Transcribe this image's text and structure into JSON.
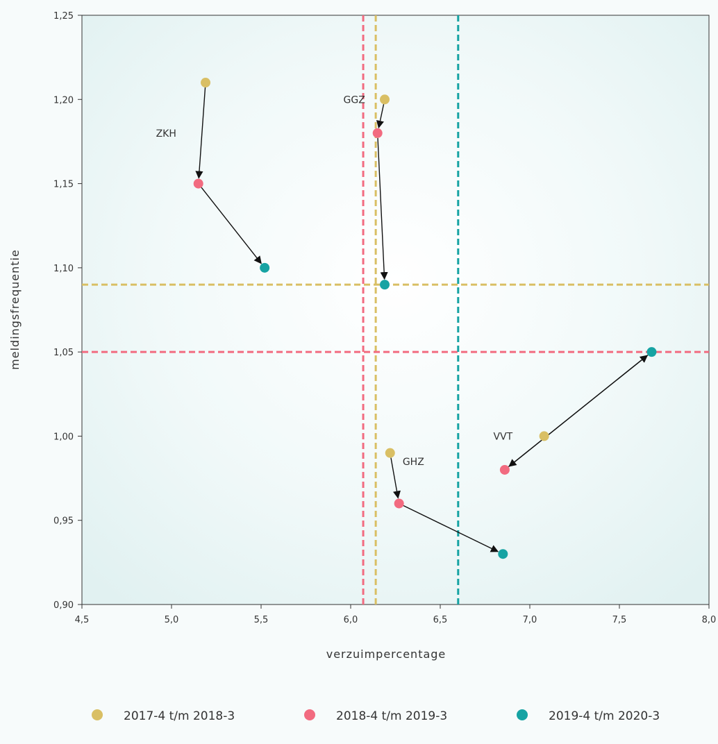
{
  "colors": {
    "gold": "#d9bf64",
    "pink": "#f26b80",
    "teal": "#16a3a3",
    "arrow": "#111111",
    "frame": "#333333"
  },
  "chart_data": {
    "type": "scatter",
    "title": "",
    "xlabel": "verzuimpercentage",
    "ylabel": "meldingsfrequentie",
    "xlim": [
      4.5,
      8.0
    ],
    "ylim": [
      0.9,
      1.25
    ],
    "xticks": [
      "4,5",
      "5,0",
      "5,5",
      "6,0",
      "6,5",
      "7,0",
      "7,5",
      "8,0"
    ],
    "xtick_values": [
      4.5,
      5.0,
      5.5,
      6.0,
      6.5,
      7.0,
      7.5,
      8.0
    ],
    "yticks": [
      "1,25",
      "1,20",
      "1,15",
      "1,10",
      "1,05",
      "1,00",
      "0,95",
      "0,90"
    ],
    "ytick_values": [
      1.25,
      1.2,
      1.15,
      1.1,
      1.05,
      1.0,
      0.95,
      0.9
    ],
    "grid": false,
    "legend_position": "bottom",
    "series": [
      {
        "name": "2017-4 t/m 2018-3",
        "color": "gold",
        "points": [
          {
            "sector": "ZKH",
            "x": 5.19,
            "y": 1.21
          },
          {
            "sector": "GGZ",
            "x": 6.19,
            "y": 1.2
          },
          {
            "sector": "GHZ",
            "x": 6.22,
            "y": 0.99
          },
          {
            "sector": "VVT",
            "x": 7.08,
            "y": 1.0
          }
        ],
        "vline": 6.14,
        "hline": 1.09
      },
      {
        "name": "2018-4 t/m 2019-3",
        "color": "pink",
        "points": [
          {
            "sector": "ZKH",
            "x": 5.15,
            "y": 1.15
          },
          {
            "sector": "GGZ",
            "x": 6.15,
            "y": 1.18
          },
          {
            "sector": "GHZ",
            "x": 6.27,
            "y": 0.96
          },
          {
            "sector": "VVT",
            "x": 6.86,
            "y": 0.98
          }
        ],
        "vline": 6.07,
        "hline": 1.05
      },
      {
        "name": "2019-4 t/m 2020-3",
        "color": "teal",
        "points": [
          {
            "sector": "ZKH",
            "x": 5.52,
            "y": 1.1
          },
          {
            "sector": "GGZ",
            "x": 6.19,
            "y": 1.09
          },
          {
            "sector": "GHZ",
            "x": 6.85,
            "y": 0.93
          },
          {
            "sector": "VVT",
            "x": 7.68,
            "y": 1.05
          }
        ],
        "vline": 6.6
      }
    ],
    "arrows": [
      {
        "from": [
          5.19,
          1.21
        ],
        "to": [
          5.15,
          1.15
        ]
      },
      {
        "from": [
          5.15,
          1.15
        ],
        "to": [
          5.52,
          1.1
        ]
      },
      {
        "from": [
          6.19,
          1.2
        ],
        "to": [
          6.15,
          1.18
        ]
      },
      {
        "from": [
          6.15,
          1.18
        ],
        "to": [
          6.19,
          1.09
        ]
      },
      {
        "from": [
          6.22,
          0.99
        ],
        "to": [
          6.27,
          0.96
        ]
      },
      {
        "from": [
          6.27,
          0.96
        ],
        "to": [
          6.85,
          0.93
        ]
      },
      {
        "from": [
          7.68,
          1.05
        ],
        "to": [
          6.86,
          0.98
        ]
      },
      {
        "from": [
          6.86,
          0.98
        ],
        "to": [
          7.68,
          1.05
        ]
      }
    ],
    "annotations": [
      {
        "text": "ZKH",
        "x": 4.97,
        "y": 1.18
      },
      {
        "text": "GGZ",
        "x": 6.02,
        "y": 1.2
      },
      {
        "text": "GHZ",
        "x": 6.35,
        "y": 0.985
      },
      {
        "text": "VVT",
        "x": 6.85,
        "y": 1.0
      }
    ]
  }
}
